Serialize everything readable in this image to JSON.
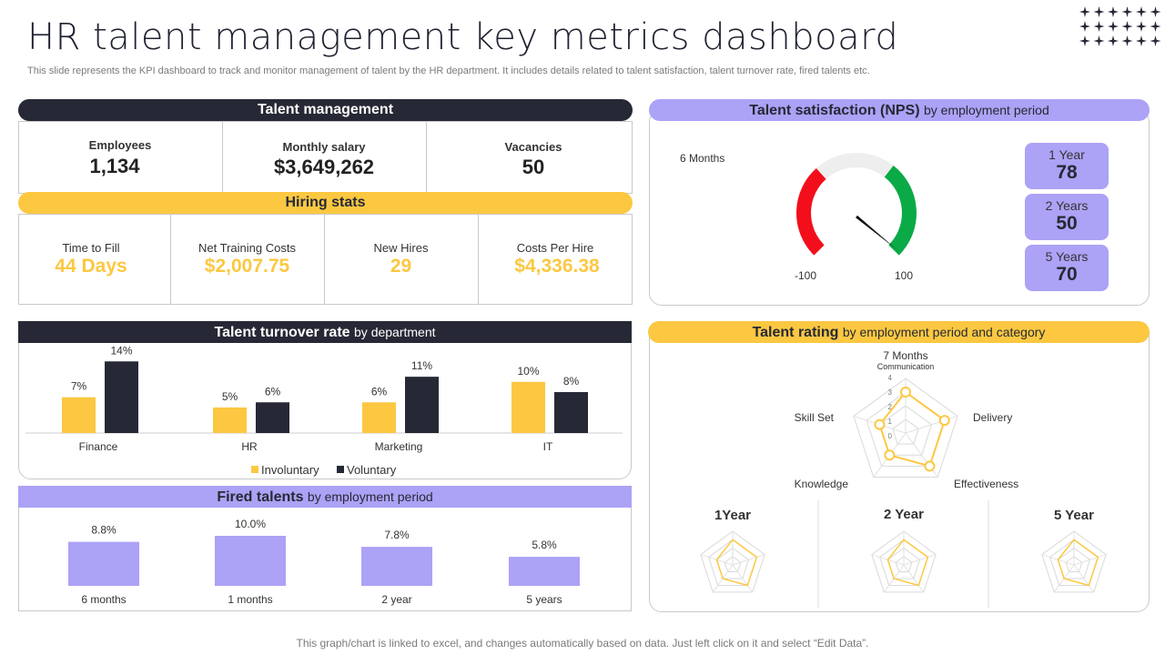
{
  "header": {
    "title": "HR talent management key metrics dashboard",
    "subtitle": "This slide represents the KPI dashboard to track and monitor management of talent by the HR department. It includes details related to talent satisfaction, talent turnover rate, fired talents etc.",
    "footer": "This graph/chart is linked to excel,  and changes automatically based on data. Just left click on it and select “Edit Data”."
  },
  "colors": {
    "dark": "#262935",
    "yellow": "#fcc842",
    "purple": "#aca2f6",
    "red": "#f20f1b",
    "green": "#0aaa47"
  },
  "talent_management": {
    "title": "Talent management",
    "metrics": [
      {
        "label": "Employees",
        "value": "1,134"
      },
      {
        "label": "Monthly salary",
        "value": "$3,649,262"
      },
      {
        "label": "Vacancies",
        "value": "50"
      }
    ]
  },
  "hiring_stats": {
    "title": "Hiring stats",
    "metrics": [
      {
        "label": "Time to Fill",
        "value": "44 Days"
      },
      {
        "label": "Net Training Costs",
        "value": "$2,007.75"
      },
      {
        "label": "New Hires",
        "value": "29"
      },
      {
        "label": "Costs Per Hire",
        "value": "$4,336.38"
      }
    ]
  },
  "nps": {
    "title": "Talent satisfaction",
    "title_abbr": "(NPS)",
    "title_sub": "by employment period",
    "gauge_label": "6 Months",
    "min_label": "-100",
    "max_label": "100",
    "periods": [
      {
        "label": "1 Year",
        "value": "78"
      },
      {
        "label": "2 Years",
        "value": "50"
      },
      {
        "label": "5 Years",
        "value": "70"
      }
    ]
  },
  "turnover": {
    "title": "Talent turnover rate",
    "title_sub": "by department",
    "legend": [
      "Involuntary",
      "Voluntary"
    ]
  },
  "fired": {
    "title": "Fired talents",
    "title_sub": "by employment period"
  },
  "rating": {
    "title": "Talent rating",
    "title_sub": "by employment period and category",
    "main_label": "7 Months",
    "axes": [
      "Communication",
      "Delivery",
      "Effectiveness",
      "Knowledge",
      "Skill Set"
    ],
    "scale_labels": [
      "4",
      "3",
      "2",
      "1",
      "0"
    ],
    "small_titles": [
      "1Year",
      "2 Year",
      "5 Year"
    ]
  },
  "chart_data": [
    {
      "type": "bar",
      "title": "Talent turnover rate by department",
      "categories": [
        "Finance",
        "HR",
        "Marketing",
        "IT"
      ],
      "series": [
        {
          "name": "Involuntary",
          "values": [
            7,
            5,
            6,
            10
          ],
          "labels": [
            "7%",
            "5%",
            "6%",
            "10%"
          ]
        },
        {
          "name": "Voluntary",
          "values": [
            14,
            6,
            11,
            8
          ],
          "labels": [
            "14%",
            "6%",
            "11%",
            "8%"
          ]
        }
      ],
      "ylim": [
        0,
        16
      ]
    },
    {
      "type": "bar",
      "title": "Fired talents by employment period",
      "categories": [
        "6 months",
        "1 months",
        "2 year",
        "5 years"
      ],
      "values": [
        8.8,
        10.0,
        7.8,
        5.8
      ],
      "labels": [
        "8.8%",
        "10.0%",
        "7.8%",
        "5.8%"
      ],
      "ylim": [
        0,
        12
      ]
    },
    {
      "type": "radar",
      "title": "Talent rating - 7 Months",
      "axes": [
        "Communication",
        "Delivery",
        "Effectiveness",
        "Knowledge",
        "Skill Set"
      ],
      "values": [
        3,
        3,
        3,
        2,
        2
      ],
      "rlim": [
        0,
        4
      ]
    },
    {
      "type": "gauge",
      "title": "Talent satisfaction (NPS) - 6 Months",
      "range": [
        -100,
        100
      ],
      "value": 98
    }
  ]
}
